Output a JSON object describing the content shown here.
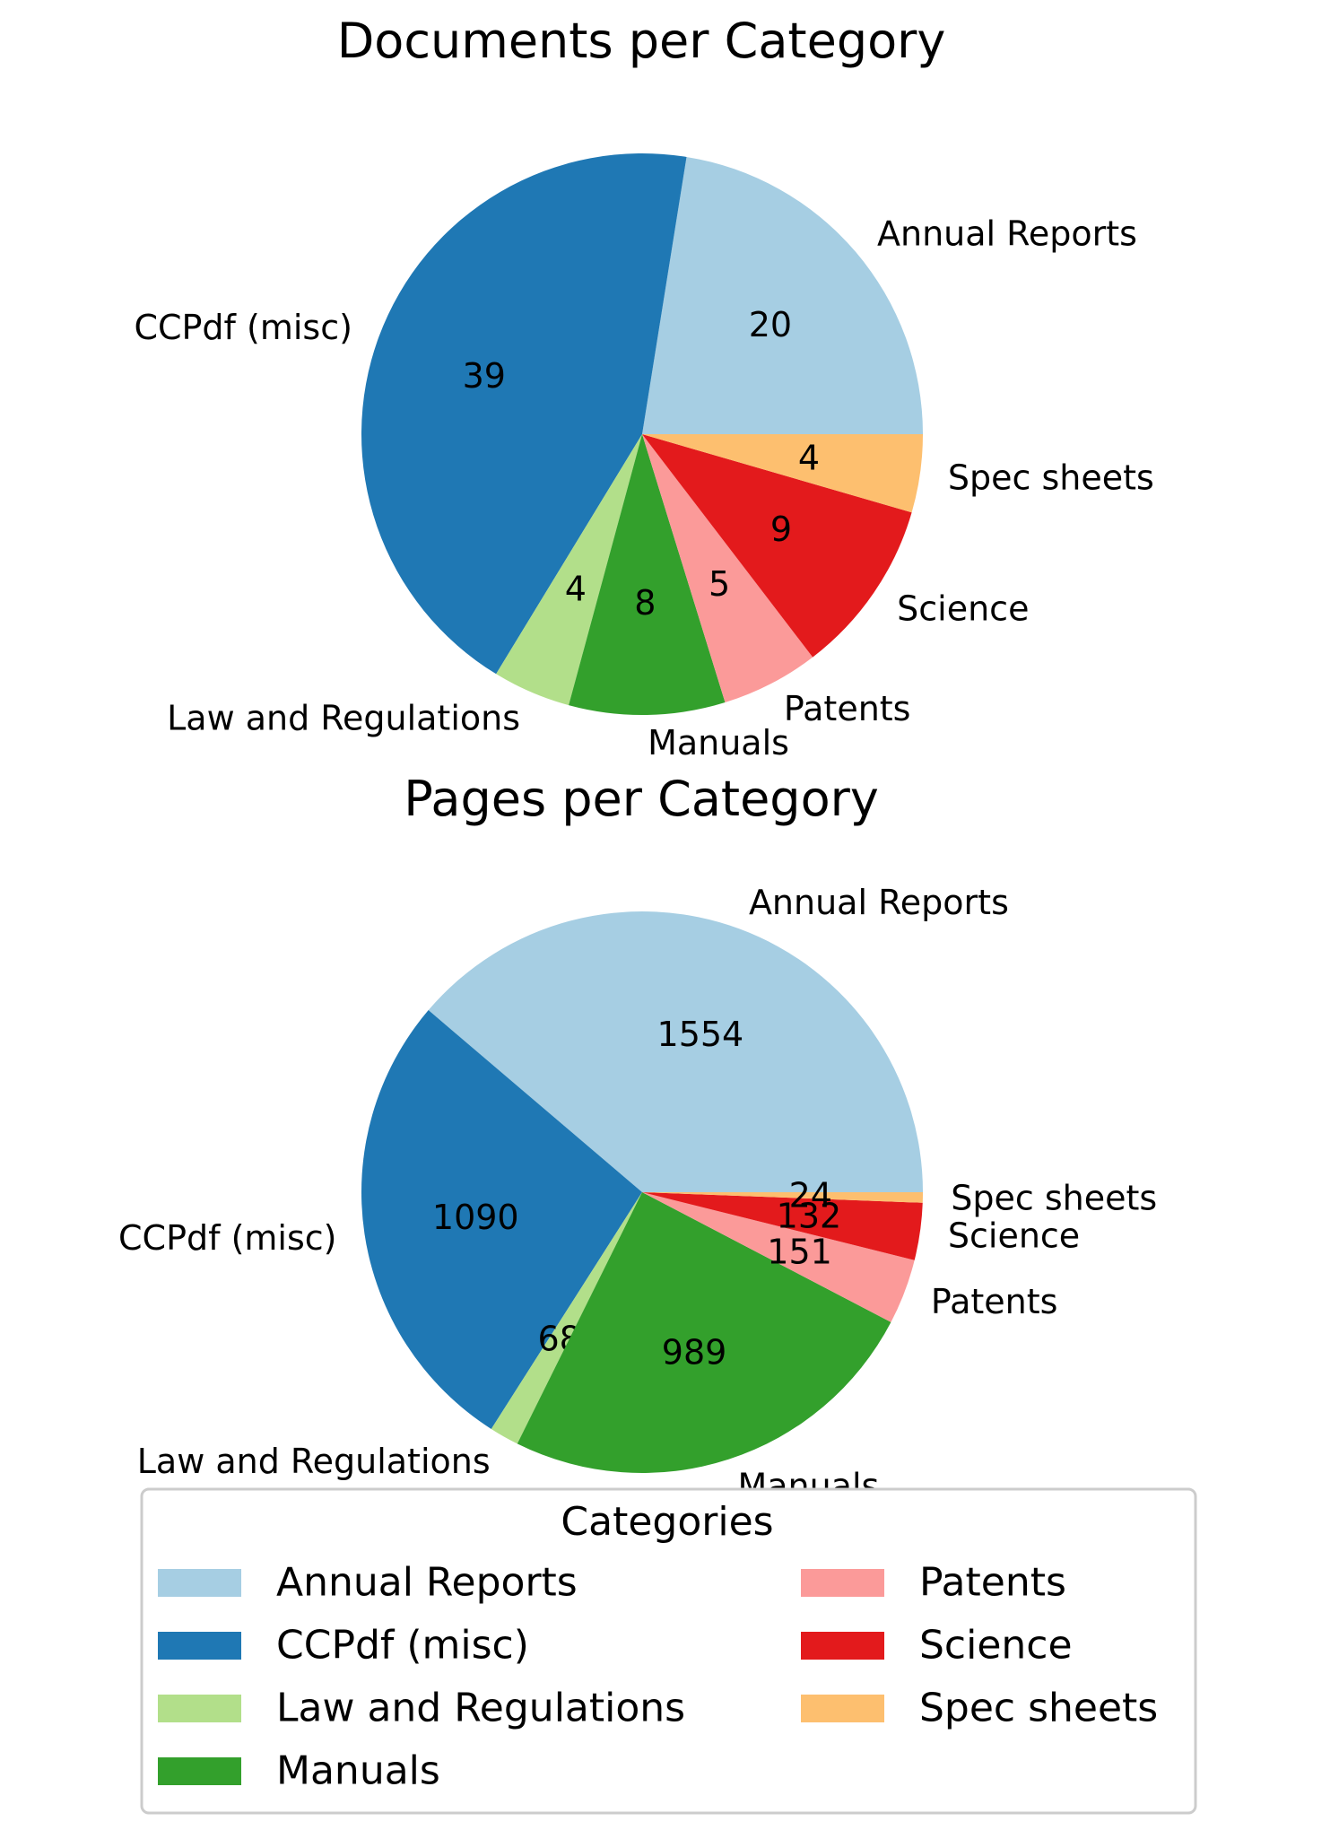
{
  "chart_data": [
    {
      "type": "pie",
      "title": "Documents per Category",
      "categories": [
        "Annual Reports",
        "CCPdf (misc)",
        "Law and Regulations",
        "Manuals",
        "Patents",
        "Science",
        "Spec sheets"
      ],
      "values": [
        20,
        39,
        4,
        8,
        5,
        9,
        4
      ],
      "value_labels": [
        "20",
        "39",
        "4",
        "8",
        "5",
        "9",
        "4"
      ]
    },
    {
      "type": "pie",
      "title": "Pages per Category",
      "categories": [
        "Annual Reports",
        "CCPdf (misc)",
        "Law and Regulations",
        "Manuals",
        "Patents",
        "Science",
        "Spec sheets"
      ],
      "values": [
        1554,
        1090,
        68,
        989,
        151,
        132,
        24
      ],
      "value_labels": [
        "1554",
        "1090",
        "68",
        "989",
        "151",
        "132",
        "24"
      ]
    }
  ],
  "colors": [
    "#a6cee3",
    "#1f78b4",
    "#b2df8a",
    "#33a02c",
    "#fb9a99",
    "#e31a1c",
    "#fdbf6f"
  ],
  "legend": {
    "title": "Categories",
    "placement": "bottom-center",
    "items": [
      "Annual Reports",
      "CCPdf (misc)",
      "Law and Regulations",
      "Manuals",
      "Patents",
      "Science",
      "Spec sheets"
    ]
  }
}
